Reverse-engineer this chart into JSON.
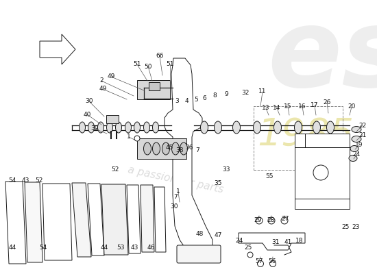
{
  "bg": "#ffffff",
  "lc": "#1a1a1a",
  "wm1_color": "#e0e0e0",
  "wm2_color": "#d4c84a",
  "wm3_color": "#d0d0d0",
  "fs": 6.5,
  "labels": [
    [
      148,
      118,
      "2"
    ],
    [
      162,
      112,
      "49"
    ],
    [
      150,
      130,
      "49"
    ],
    [
      216,
      97,
      "50"
    ],
    [
      200,
      94,
      "51"
    ],
    [
      233,
      82,
      "66"
    ],
    [
      248,
      94,
      "51"
    ],
    [
      130,
      148,
      "30"
    ],
    [
      127,
      167,
      "40"
    ],
    [
      138,
      188,
      "39"
    ],
    [
      188,
      200,
      "1"
    ],
    [
      260,
      280,
      "1"
    ],
    [
      258,
      148,
      "3"
    ],
    [
      272,
      148,
      "4"
    ],
    [
      286,
      146,
      "5"
    ],
    [
      298,
      143,
      "6"
    ],
    [
      313,
      140,
      "8"
    ],
    [
      330,
      138,
      "9"
    ],
    [
      358,
      136,
      "32"
    ],
    [
      383,
      134,
      "11"
    ],
    [
      388,
      158,
      "13"
    ],
    [
      404,
      158,
      "14"
    ],
    [
      420,
      156,
      "15"
    ],
    [
      441,
      155,
      "16"
    ],
    [
      459,
      154,
      "17"
    ],
    [
      477,
      150,
      "26"
    ],
    [
      513,
      156,
      "20"
    ],
    [
      529,
      183,
      "22"
    ],
    [
      529,
      197,
      "21"
    ],
    [
      524,
      212,
      "19"
    ],
    [
      520,
      226,
      "24"
    ],
    [
      247,
      215,
      "45"
    ],
    [
      262,
      219,
      "38"
    ],
    [
      276,
      216,
      "36"
    ],
    [
      168,
      248,
      "52"
    ],
    [
      288,
      220,
      "7"
    ],
    [
      330,
      248,
      "33"
    ],
    [
      318,
      268,
      "35"
    ],
    [
      256,
      288,
      "7"
    ],
    [
      254,
      302,
      "30"
    ],
    [
      291,
      341,
      "48"
    ],
    [
      318,
      344,
      "47"
    ],
    [
      393,
      258,
      "55"
    ],
    [
      18,
      263,
      "54"
    ],
    [
      37,
      263,
      "43"
    ],
    [
      57,
      263,
      "52"
    ],
    [
      18,
      362,
      "44"
    ],
    [
      63,
      362,
      "54"
    ],
    [
      152,
      362,
      "44"
    ],
    [
      176,
      362,
      "53"
    ],
    [
      196,
      362,
      "43"
    ],
    [
      220,
      362,
      "46"
    ],
    [
      376,
      321,
      "29"
    ],
    [
      395,
      321,
      "28"
    ],
    [
      416,
      320,
      "27"
    ],
    [
      349,
      351,
      "24"
    ],
    [
      362,
      362,
      "25"
    ],
    [
      402,
      353,
      "31"
    ],
    [
      420,
      353,
      "41"
    ],
    [
      437,
      351,
      "18"
    ],
    [
      504,
      331,
      "25"
    ],
    [
      519,
      331,
      "23"
    ],
    [
      378,
      381,
      "57"
    ],
    [
      397,
      381,
      "56"
    ]
  ]
}
